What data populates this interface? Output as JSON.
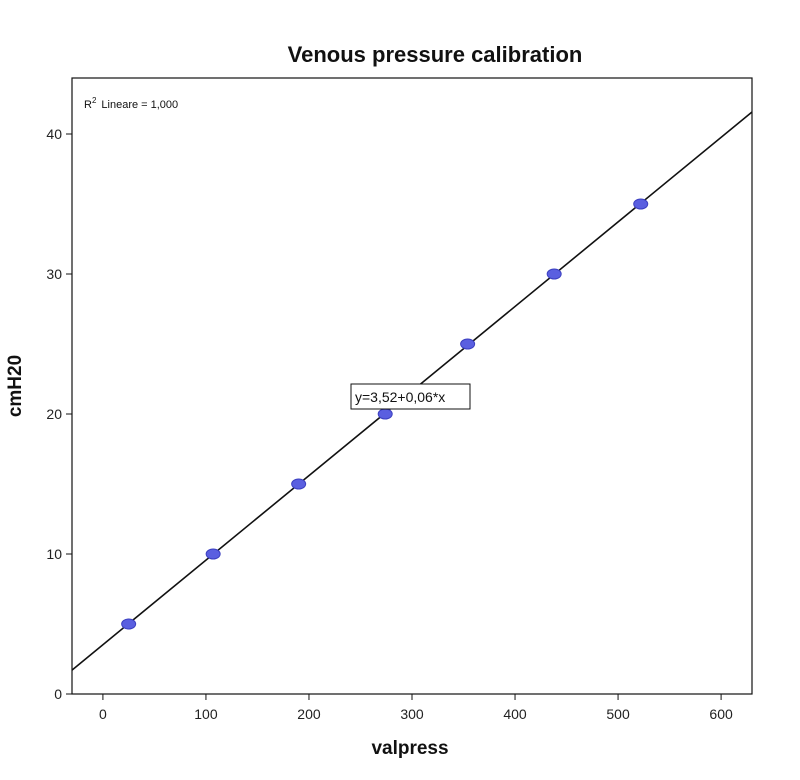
{
  "chart_data": {
    "type": "scatter",
    "title": "Venous pressure calibration",
    "xlabel": "valpress",
    "ylabel": "cmH20",
    "xlim": [
      -30,
      630
    ],
    "ylim": [
      0,
      44
    ],
    "xticks": [
      0,
      100,
      200,
      300,
      400,
      500,
      600
    ],
    "yticks": [
      0,
      10,
      20,
      30,
      40
    ],
    "grid": false,
    "points": {
      "x": [
        25,
        107,
        190,
        274,
        354,
        438,
        522
      ],
      "y": [
        5,
        10,
        15,
        20,
        25,
        30,
        35
      ]
    },
    "fit_line": {
      "intercept": 3.52,
      "slope": 0.0604
    },
    "r2_label": {
      "prefix": "R",
      "sup": "2",
      "rest": "Lineare = 1,000"
    },
    "equation_label": "y=3,52+0,06*x",
    "colors": {
      "marker": "#5a5fe0",
      "marker_stroke": "#3b3fc0",
      "line": "#111111",
      "axis": "#111111"
    }
  }
}
